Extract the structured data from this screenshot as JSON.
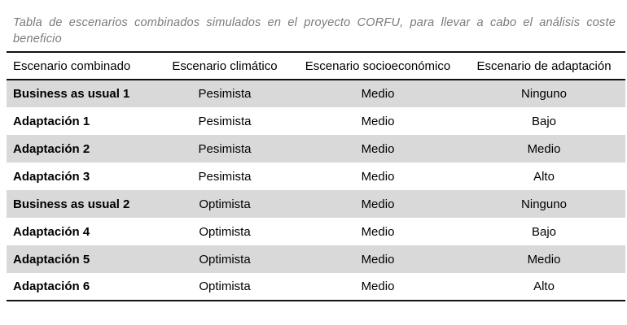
{
  "caption": "Tabla de escenarios combinados simulados en el proyecto CORFU, para llevar a cabo el análisis coste beneficio",
  "table": {
    "headers": {
      "scenario": "Escenario combinado",
      "climatic": "Escenario climático",
      "socioeconomic": "Escenario socioeconómico",
      "adaptation": "Escenario de adaptación"
    },
    "rows": [
      {
        "scenario": "Business as usual 1",
        "climatic": "Pesimista",
        "socioeconomic": "Medio",
        "adaptation": "Ninguno",
        "shaded": true
      },
      {
        "scenario": "Adaptación 1",
        "climatic": "Pesimista",
        "socioeconomic": "Medio",
        "adaptation": "Bajo",
        "shaded": false
      },
      {
        "scenario": "Adaptación 2",
        "climatic": "Pesimista",
        "socioeconomic": "Medio",
        "adaptation": "Medio",
        "shaded": true
      },
      {
        "scenario": "Adaptación 3",
        "climatic": "Pesimista",
        "socioeconomic": "Medio",
        "adaptation": "Alto",
        "shaded": false
      },
      {
        "scenario": "Business as usual 2",
        "climatic": "Optimista",
        "socioeconomic": "Medio",
        "adaptation": "Ninguno",
        "shaded": true
      },
      {
        "scenario": "Adaptación 4",
        "climatic": "Optimista",
        "socioeconomic": "Medio",
        "adaptation": "Bajo",
        "shaded": false
      },
      {
        "scenario": "Adaptación 5",
        "climatic": "Optimista",
        "socioeconomic": "Medio",
        "adaptation": "Medio",
        "shaded": true
      },
      {
        "scenario": "Adaptación 6",
        "climatic": "Optimista",
        "socioeconomic": "Medio",
        "adaptation": "Alto",
        "shaded": false
      }
    ]
  },
  "colors": {
    "caption_text": "#7a7a7a",
    "row_shade": "#d9d9d9",
    "rule": "#111111"
  }
}
